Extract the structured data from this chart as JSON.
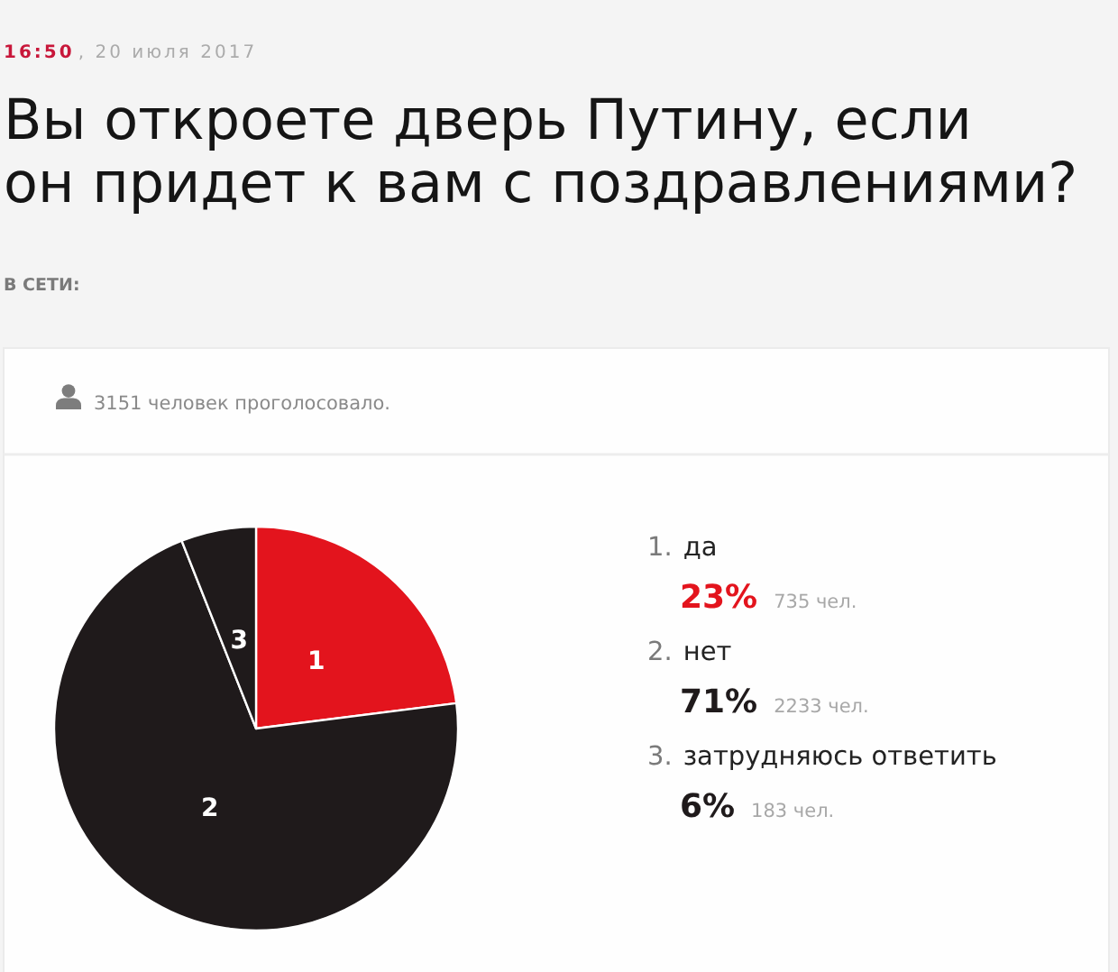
{
  "chart_data": {
    "type": "pie",
    "title": "Вы откроете дверь Путину, если\nон придет к вам с поздравлениями?",
    "subtitle": "В СЕТИ:",
    "categories": [
      "1",
      "2",
      "3"
    ],
    "values": [
      23,
      71,
      6
    ],
    "colors": [
      "#e3141d",
      "#1f1a1b",
      "#1f1a1b"
    ],
    "annotations": [
      "16:50",
      ", 20 июля 2017",
      "3151 человек проголосовало.",
      "1. да",
      "23%",
      "735 чел.",
      "2. нет",
      "71%",
      "2233 чел.",
      "3. затрудняюсь ответить",
      "6%",
      "183 чел."
    ]
  }
}
